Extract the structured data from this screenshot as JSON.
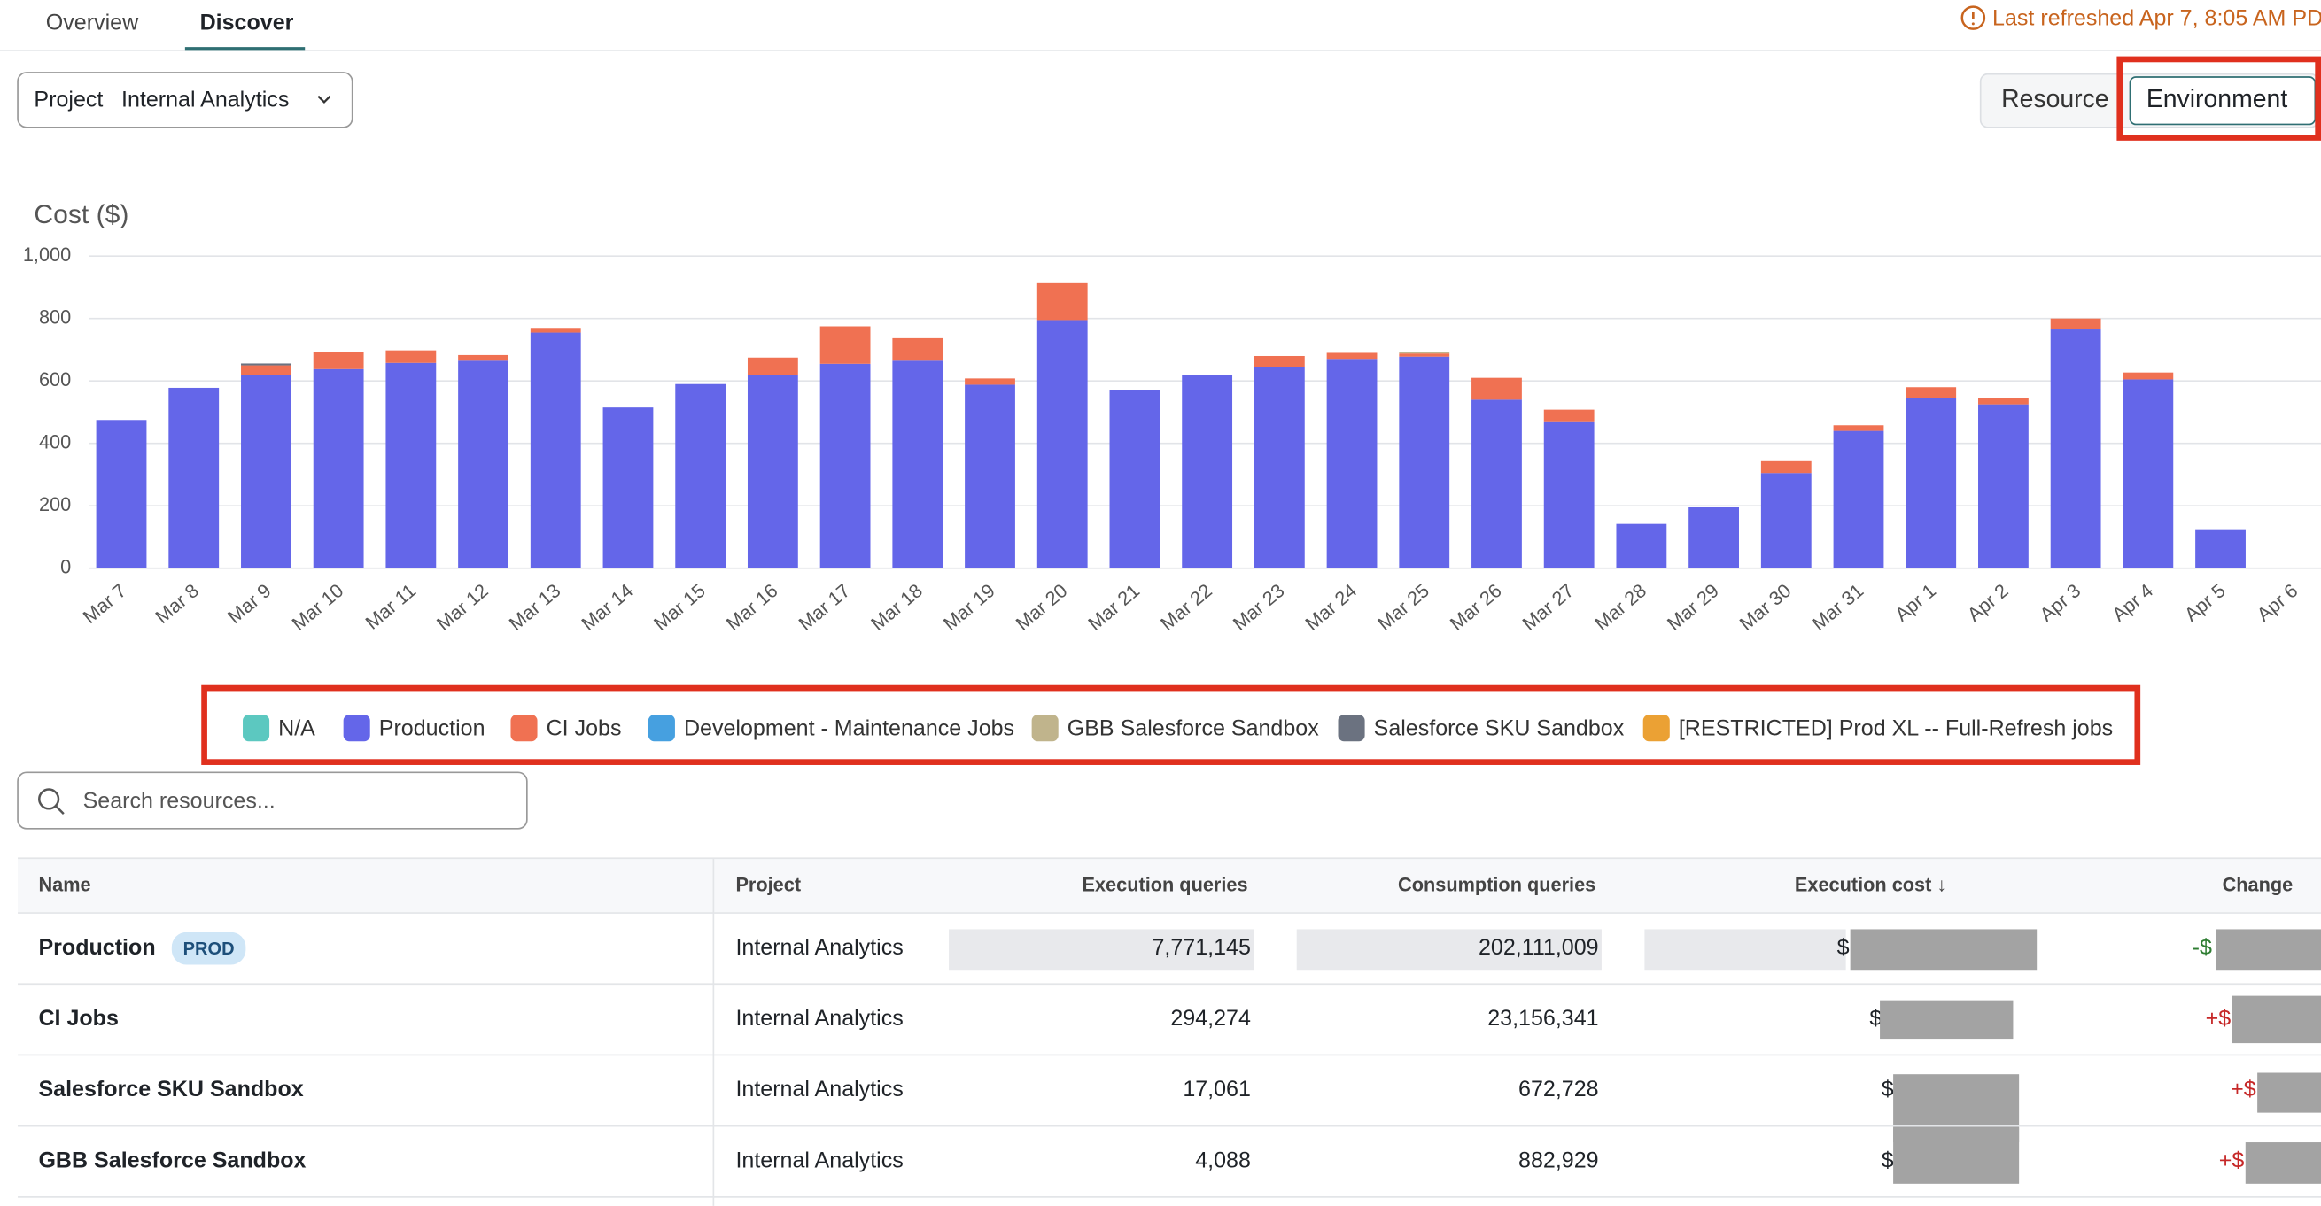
{
  "tabs": [
    "Overview",
    "Discover"
  ],
  "refresh_status": "Last refreshed Apr 7, 8:05 AM PD",
  "project_filter": {
    "label": "Project",
    "value": "Internal Analytics"
  },
  "view_toggle": [
    "Resource",
    "Environment"
  ],
  "chart_data": {
    "type": "bar",
    "stacked": true,
    "y_label": "Cost ($)",
    "categories": [
      "Mar 7",
      "Mar 8",
      "Mar 9",
      "Mar 10",
      "Mar 11",
      "Mar 12",
      "Mar 13",
      "Mar 14",
      "Mar 15",
      "Mar 16",
      "Mar 17",
      "Mar 18",
      "Mar 19",
      "Mar 20",
      "Mar 21",
      "Mar 22",
      "Mar 23",
      "Mar 24",
      "Mar 25",
      "Mar 26",
      "Mar 27",
      "Mar 28",
      "Mar 29",
      "Mar 30",
      "Mar 31",
      "Apr 1",
      "Apr 2",
      "Apr 3",
      "Apr 4",
      "Apr 5",
      "Apr 6"
    ],
    "series": [
      {
        "name": "N/A",
        "color": "#5cc8c0",
        "values": [
          0,
          0,
          0,
          0,
          0,
          0,
          0,
          0,
          0,
          0,
          0,
          0,
          0,
          0,
          0,
          0,
          0,
          0,
          0,
          0,
          0,
          0,
          0,
          0,
          0,
          0,
          0,
          0,
          0,
          0,
          0
        ]
      },
      {
        "name": "Production",
        "color": "#6466e9",
        "values": [
          475,
          578,
          620,
          638,
          658,
          665,
          755,
          515,
          590,
          620,
          655,
          665,
          588,
          795,
          570,
          618,
          645,
          668,
          678,
          540,
          468,
          142,
          195,
          305,
          440,
          545,
          525,
          765,
          605,
          125,
          0
        ]
      },
      {
        "name": "CI Jobs",
        "color": "#f07152",
        "values": [
          0,
          0,
          30,
          55,
          40,
          18,
          15,
          0,
          0,
          55,
          120,
          72,
          20,
          118,
          0,
          0,
          35,
          22,
          10,
          70,
          40,
          0,
          0,
          38,
          18,
          35,
          20,
          35,
          22,
          0,
          0
        ]
      },
      {
        "name": "Development - Maintenance Jobs",
        "color": "#46a0e0",
        "values": [
          0,
          0,
          0,
          0,
          0,
          0,
          0,
          0,
          0,
          0,
          0,
          0,
          0,
          0,
          0,
          0,
          0,
          0,
          0,
          0,
          0,
          0,
          0,
          0,
          0,
          0,
          0,
          0,
          0,
          0,
          0
        ]
      },
      {
        "name": "GBB Salesforce Sandbox",
        "color": "#c0b48c",
        "values": [
          0,
          0,
          0,
          0,
          0,
          0,
          0,
          0,
          0,
          0,
          0,
          0,
          0,
          0,
          0,
          0,
          0,
          0,
          5,
          0,
          0,
          0,
          0,
          0,
          0,
          0,
          0,
          0,
          0,
          0,
          0
        ]
      },
      {
        "name": "Salesforce SKU Sandbox",
        "color": "#6b7280",
        "values": [
          0,
          0,
          6,
          0,
          0,
          0,
          0,
          0,
          0,
          0,
          0,
          0,
          0,
          0,
          0,
          0,
          0,
          0,
          0,
          0,
          0,
          0,
          0,
          0,
          0,
          0,
          0,
          0,
          0,
          0,
          0
        ]
      },
      {
        "name": "[RESTRICTED] Prod XL -- Full-Refresh jobs",
        "color": "#eba134",
        "values": [
          0,
          0,
          0,
          0,
          0,
          0,
          0,
          0,
          0,
          0,
          0,
          0,
          0,
          0,
          0,
          0,
          0,
          0,
          0,
          0,
          0,
          0,
          0,
          0,
          0,
          0,
          0,
          0,
          0,
          0,
          0
        ]
      }
    ],
    "ylim": [
      0,
      1000
    ],
    "yticks": [
      0,
      200,
      400,
      600,
      800,
      {
        "value": 1000,
        "label": "1,000"
      }
    ],
    "grid": true
  },
  "search": {
    "placeholder": "Search resources..."
  },
  "table": {
    "columns": [
      "Name",
      "Project",
      "Execution queries",
      "Consumption queries",
      "Execution cost ↓",
      "Change"
    ],
    "rows": [
      {
        "name": "Production",
        "badge": "PROD",
        "project": "Internal Analytics",
        "execution_queries": "7,771,145",
        "consumption_queries": "202,111,009",
        "execution_cost": "$",
        "change": "-$"
      },
      {
        "name": "CI Jobs",
        "project": "Internal Analytics",
        "execution_queries": "294,274",
        "consumption_queries": "23,156,341",
        "execution_cost": "$",
        "change": "+$"
      },
      {
        "name": "Salesforce SKU Sandbox",
        "project": "Internal Analytics",
        "execution_queries": "17,061",
        "consumption_queries": "672,728",
        "execution_cost": "$",
        "change": "+$"
      },
      {
        "name": "GBB Salesforce Sandbox",
        "project": "Internal Analytics",
        "execution_queries": "4,088",
        "consumption_queries": "882,929",
        "execution_cost": "$",
        "change": "+$"
      }
    ]
  }
}
